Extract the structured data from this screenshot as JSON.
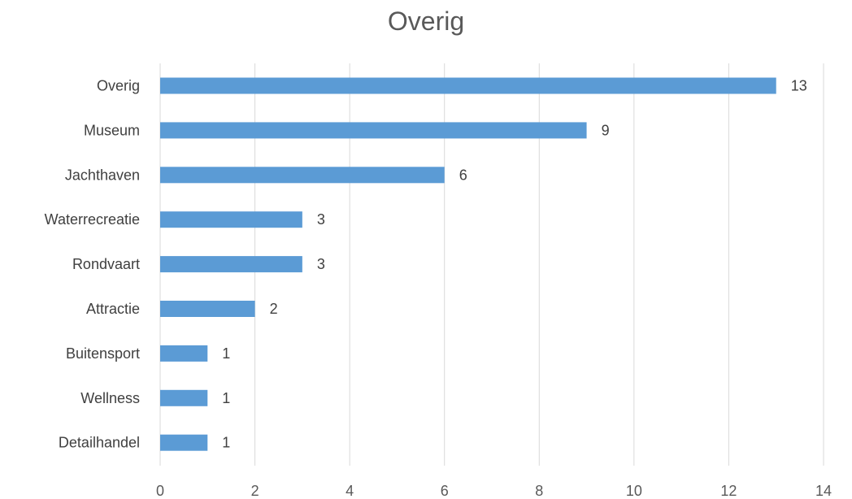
{
  "chart_data": {
    "type": "bar",
    "orientation": "horizontal",
    "title": "Overig",
    "xlabel": "",
    "ylabel": "",
    "categories": [
      "Overig",
      "Museum",
      "Jachthaven",
      "Waterrecreatie",
      "Rondvaart",
      "Attractie",
      "Buitensport",
      "Wellness",
      "Detailhandel"
    ],
    "values": [
      13,
      9,
      6,
      3,
      3,
      2,
      1,
      1,
      1
    ],
    "xlim": [
      0,
      14
    ],
    "x_ticks": [
      0,
      2,
      4,
      6,
      8,
      10,
      12,
      14
    ],
    "grid": "vertical",
    "data_labels": true,
    "bar_color": "#5b9bd5",
    "grid_color": "#d9d9d9"
  }
}
